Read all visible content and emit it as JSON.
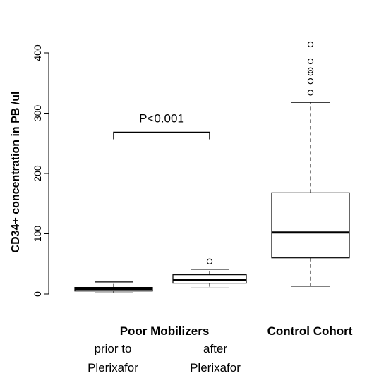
{
  "chart_data": {
    "type": "boxplot",
    "ylabel": "CD34+ concentration in PB /ul",
    "ylim": [
      0,
      400
    ],
    "yticks": [
      0,
      100,
      200,
      300,
      400
    ],
    "grid": false,
    "group_labels": [
      "Poor Mobilizers",
      "Control Cohort"
    ],
    "boxes": [
      {
        "sublabel_line1": "prior to",
        "sublabel_line2": "Plerixafor",
        "whisker_low": 2,
        "q1": 5,
        "median": 8,
        "q3": 11,
        "whisker_high": 20,
        "outliers": []
      },
      {
        "sublabel_line1": "after",
        "sublabel_line2": "Plerixafor",
        "whisker_low": 10,
        "q1": 18,
        "median": 24,
        "q3": 32,
        "whisker_high": 41,
        "outliers": [
          54
        ]
      },
      {
        "sublabel_line1": "",
        "sublabel_line2": "",
        "whisker_low": 13,
        "q1": 60,
        "median": 102,
        "q3": 168,
        "whisker_high": 318,
        "outliers": [
          334,
          353,
          367,
          371,
          386,
          414
        ]
      }
    ],
    "annotation": {
      "text": "P<0.001",
      "from_box": 0,
      "to_box": 1,
      "y": 238
    }
  }
}
